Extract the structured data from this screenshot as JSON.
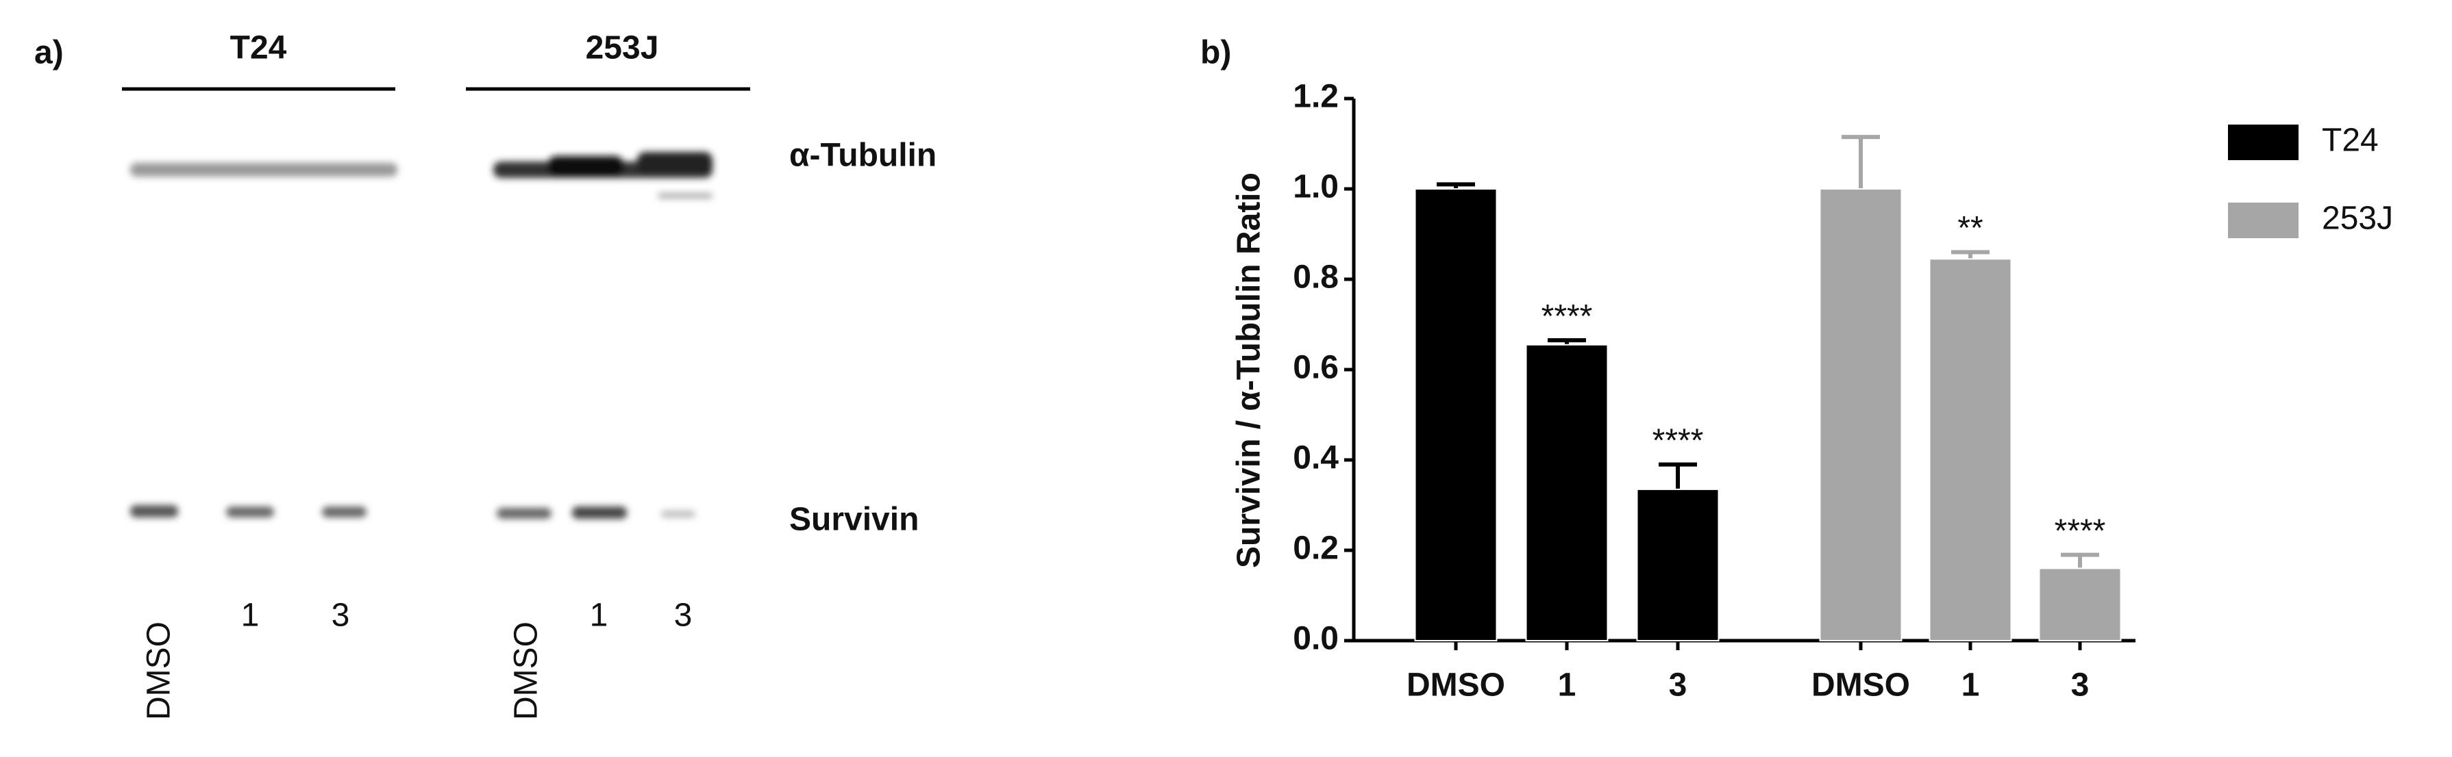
{
  "blot": {
    "panel_label": "a)",
    "groups": [
      {
        "label": "T24",
        "lanes": [
          "DMSO",
          "1",
          "3"
        ]
      },
      {
        "label": "253J",
        "lanes": [
          "DMSO",
          "1",
          "3"
        ]
      }
    ],
    "bands": [
      "α-Tubulin",
      "Survivin"
    ]
  },
  "chart_data": {
    "type": "bar",
    "panel_label": "b)",
    "y_label": "Survivin / α-Tubulin Ratio",
    "categories": [
      "DMSO",
      "1",
      "3",
      "DMSO",
      "1",
      "3"
    ],
    "series": [
      {
        "name": "T24",
        "color": "#000000",
        "values": [
          1.0,
          0.655,
          0.335,
          null,
          null,
          null
        ],
        "errors": [
          0.01,
          0.01,
          0.055,
          null,
          null,
          null
        ],
        "annotations": [
          null,
          "****",
          "****",
          null,
          null,
          null
        ]
      },
      {
        "name": "253J",
        "color": "#a6a6a6",
        "values": [
          null,
          null,
          null,
          1.0,
          0.845,
          0.16
        ],
        "errors": [
          null,
          null,
          null,
          0.115,
          0.015,
          0.03
        ],
        "annotations": [
          null,
          null,
          null,
          null,
          "**",
          "****"
        ]
      }
    ],
    "ylim": [
      0,
      1.2
    ],
    "yticks": [
      {
        "value": 0,
        "label": "0.0"
      },
      0.2,
      0.4,
      0.6,
      0.8,
      {
        "value": 1,
        "label": "1.0"
      },
      1.2
    ],
    "legend": "top-right"
  }
}
